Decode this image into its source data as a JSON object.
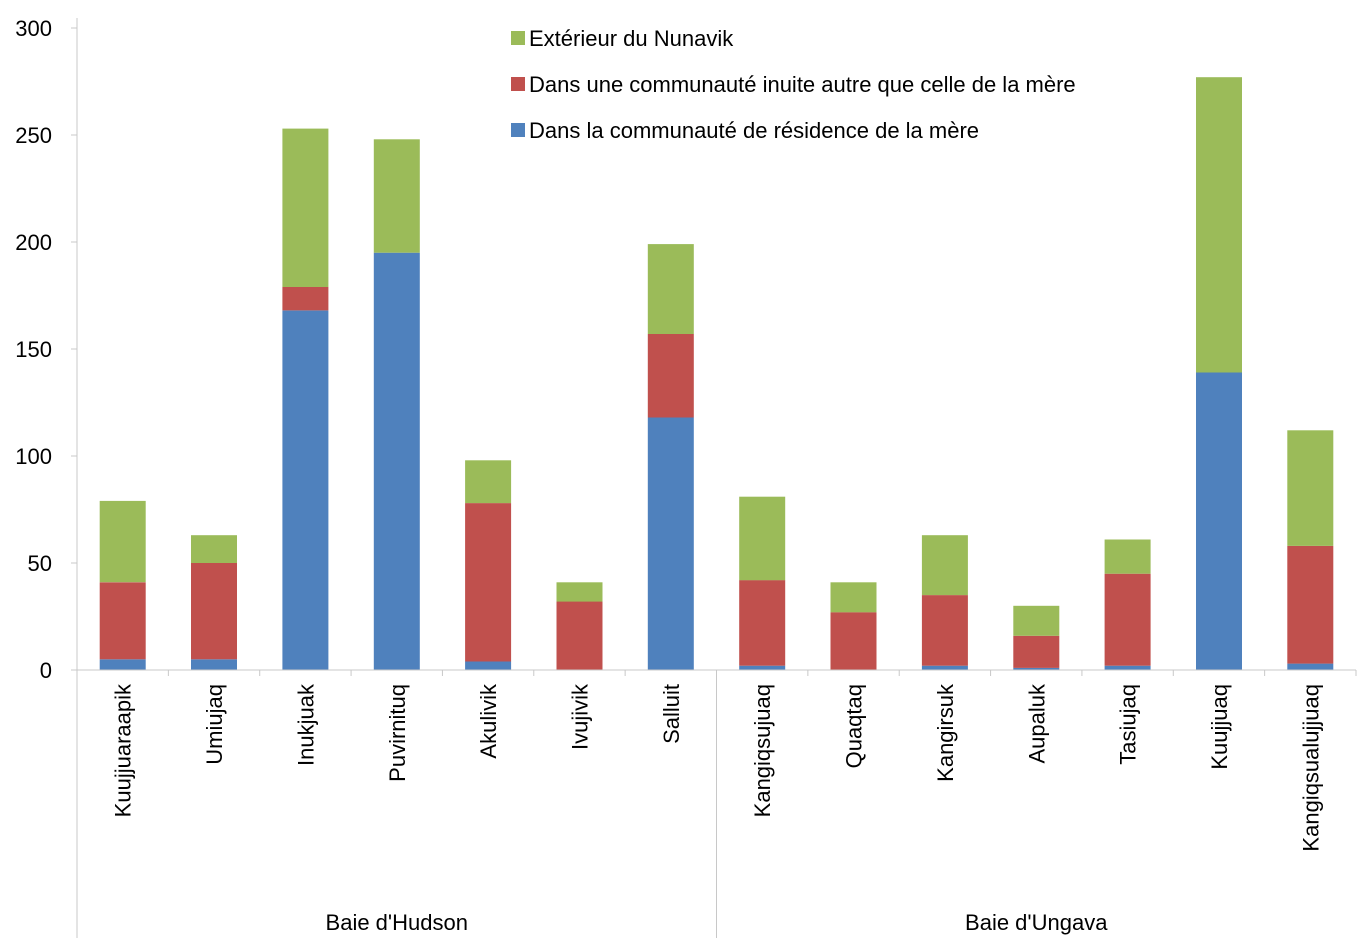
{
  "chart_data": {
    "type": "bar",
    "stacked": true,
    "title": "",
    "xlabel": "",
    "ylabel": "",
    "ylim": [
      0,
      300
    ],
    "yticks": [
      0,
      50,
      100,
      150,
      200,
      250,
      300
    ],
    "grid": false,
    "legend_position": "top-right",
    "categories": [
      "Kuujjuaraapik",
      "Umiujaq",
      "Inukjuak",
      "Puvirnituq",
      "Akulivik",
      "Ivujivik",
      "Salluit",
      "Kangiqsujuaq",
      "Quaqtaq",
      "Kangirsuk",
      "Aupaluk",
      "Tasiujaq",
      "Kuujjuaq",
      "Kangiqsualujjuaq"
    ],
    "groups": [
      {
        "label": "Baie d'Hudson",
        "count": 7
      },
      {
        "label": "Baie d'Ungava",
        "count": 7
      }
    ],
    "series": [
      {
        "name": "Dans la communauté de résidence de la mère",
        "color": "#4f81bd",
        "values": [
          5,
          5,
          168,
          195,
          4,
          0,
          118,
          2,
          0,
          2,
          1,
          2,
          139,
          3
        ]
      },
      {
        "name": "Dans une communauté inuite autre que celle de la mère",
        "color": "#c0504d",
        "values": [
          36,
          45,
          11,
          0,
          74,
          32,
          39,
          40,
          27,
          33,
          15,
          43,
          0,
          55
        ]
      },
      {
        "name": "Extérieur du Nunavik",
        "color": "#9bbb59",
        "values": [
          38,
          13,
          74,
          53,
          20,
          9,
          42,
          39,
          14,
          28,
          14,
          16,
          138,
          54
        ]
      }
    ],
    "legend_order": [
      2,
      1,
      0
    ]
  }
}
